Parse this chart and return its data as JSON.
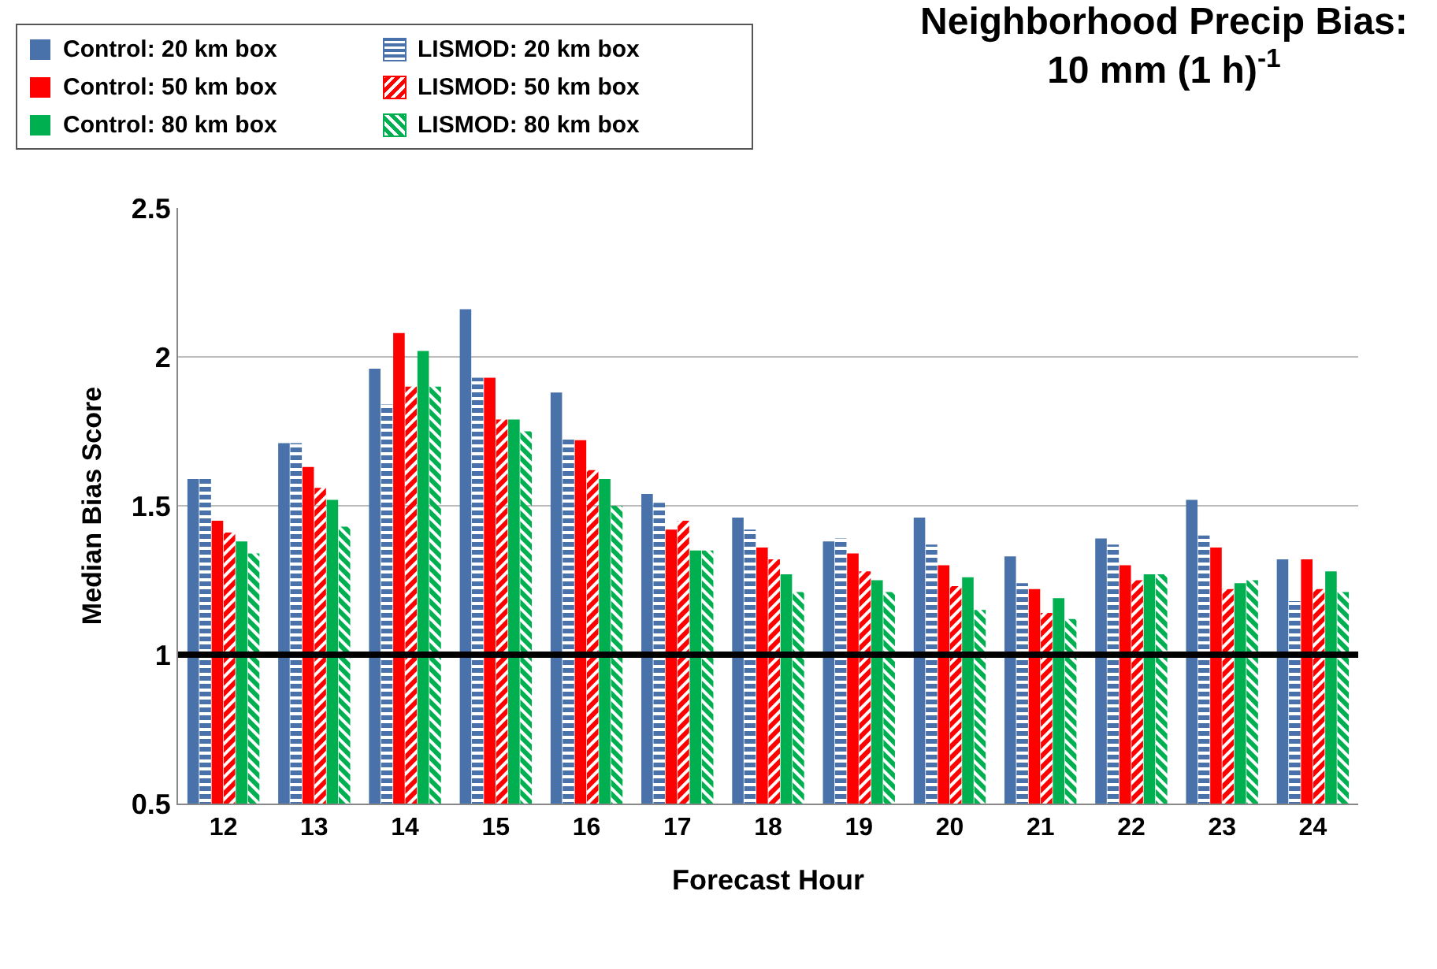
{
  "chart_data": {
    "type": "bar",
    "title": "Neighborhood Precip Bias:\n10 mm (1 h)$^{-1}$",
    "xlabel": "Forecast Hour",
    "ylabel": "Median Bias Score",
    "categories": [
      "12",
      "13",
      "14",
      "15",
      "16",
      "17",
      "18",
      "19",
      "20",
      "21",
      "22",
      "23",
      "24"
    ],
    "series": [
      {
        "name": "Control: 20 km box",
        "color": "#4a72aa",
        "values": [
          1.59,
          1.71,
          1.96,
          2.16,
          1.88,
          1.54,
          1.46,
          1.38,
          1.46,
          1.33,
          1.39,
          1.52,
          1.32
        ]
      },
      {
        "name": "LISMOD: 20 km box",
        "color": "#4a72aa",
        "values": [
          1.59,
          1.71,
          1.84,
          1.93,
          1.73,
          1.51,
          1.42,
          1.39,
          1.37,
          1.24,
          1.37,
          1.4,
          1.18
        ]
      },
      {
        "name": "Control: 50 km box",
        "color": "#ff0000",
        "values": [
          1.45,
          1.63,
          2.08,
          1.93,
          1.72,
          1.42,
          1.36,
          1.34,
          1.3,
          1.22,
          1.3,
          1.36,
          1.32
        ]
      },
      {
        "name": "LISMOD: 50 km box",
        "color": "#ff0000",
        "values": [
          1.41,
          1.56,
          1.9,
          1.79,
          1.62,
          1.45,
          1.32,
          1.28,
          1.23,
          1.14,
          1.25,
          1.22,
          1.22
        ]
      },
      {
        "name": "Control: 80 km box",
        "color": "#00b050",
        "values": [
          1.38,
          1.52,
          2.02,
          1.79,
          1.59,
          1.35,
          1.27,
          1.25,
          1.26,
          1.19,
          1.27,
          1.24,
          1.28
        ]
      },
      {
        "name": "LISMOD: 80 km box",
        "color": "#00b050",
        "values": [
          1.34,
          1.43,
          1.9,
          1.75,
          1.5,
          1.35,
          1.21,
          1.21,
          1.15,
          1.12,
          1.27,
          1.25,
          1.21
        ]
      }
    ],
    "ylim": [
      0.5,
      2.5
    ],
    "yticks": [
      {
        "value": 0.5,
        "label": "0.5"
      },
      {
        "value": 1,
        "label": "1"
      },
      {
        "value": 1.5,
        "label": "1.5"
      },
      {
        "value": 2,
        "label": "2"
      },
      {
        "value": 2.5,
        "label": "2.5"
      }
    ],
    "grid": "y",
    "legend": "top left",
    "ref_lines": [
      {
        "axis": "y",
        "value": 1,
        "color": "#000000"
      }
    ]
  }
}
